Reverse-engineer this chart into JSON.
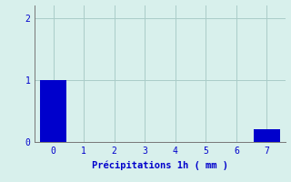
{
  "categories": [
    0,
    1,
    2,
    3,
    4,
    5,
    6,
    7
  ],
  "values": [
    1.0,
    0.0,
    0.0,
    0.0,
    0.0,
    0.0,
    0.0,
    0.2
  ],
  "bar_color": "#0000cc",
  "background_color": "#d8f0ec",
  "grid_color": "#aaccc8",
  "xlabel": "Précipitations 1h ( mm )",
  "xlabel_fontsize": 7.5,
  "tick_fontsize": 7,
  "tick_color": "#0000cc",
  "label_color": "#0000cc",
  "ylim": [
    0,
    2.2
  ],
  "yticks": [
    0,
    1,
    2
  ],
  "xlim": [
    -0.6,
    7.6
  ],
  "bar_width": 0.85
}
